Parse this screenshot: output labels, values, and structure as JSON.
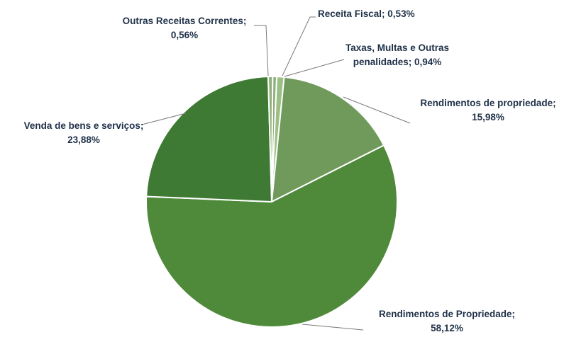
{
  "chart_data": {
    "type": "pie",
    "title": "",
    "slices": [
      {
        "name": "Receita Fiscal",
        "value": 0.53,
        "label_line1": "Receita Fiscal; 0,53%",
        "label_line2": "",
        "color": "#8fb07a"
      },
      {
        "name": "Taxas, Multas e Outras penalidades",
        "value": 0.94,
        "label_line1": "Taxas, Multas e Outras",
        "label_line2": "penalidades; 0,94%",
        "color": "#9cbf85"
      },
      {
        "name": "Rendimentos de propriedade",
        "value": 15.98,
        "label_line1": "Rendimentos de propriedade;",
        "label_line2": "15,98%",
        "color": "#6f9a5c"
      },
      {
        "name": "Rendimentos de Propriedade",
        "value": 58.12,
        "label_line1": "Rendimentos de Propriedade;",
        "label_line2": "58,12%",
        "color": "#4f8a3a"
      },
      {
        "name": "Venda de bens e serviços",
        "value": 23.88,
        "label_line1": "Venda de bens e serviços;",
        "label_line2": "23,88%",
        "color": "#3f7a34"
      },
      {
        "name": "Outras Receitas Correntes",
        "value": 0.56,
        "label_line1": "Outras Receitas Correntes;",
        "label_line2": "0,56%",
        "color": "#8fb07a"
      }
    ],
    "legend": "none"
  }
}
